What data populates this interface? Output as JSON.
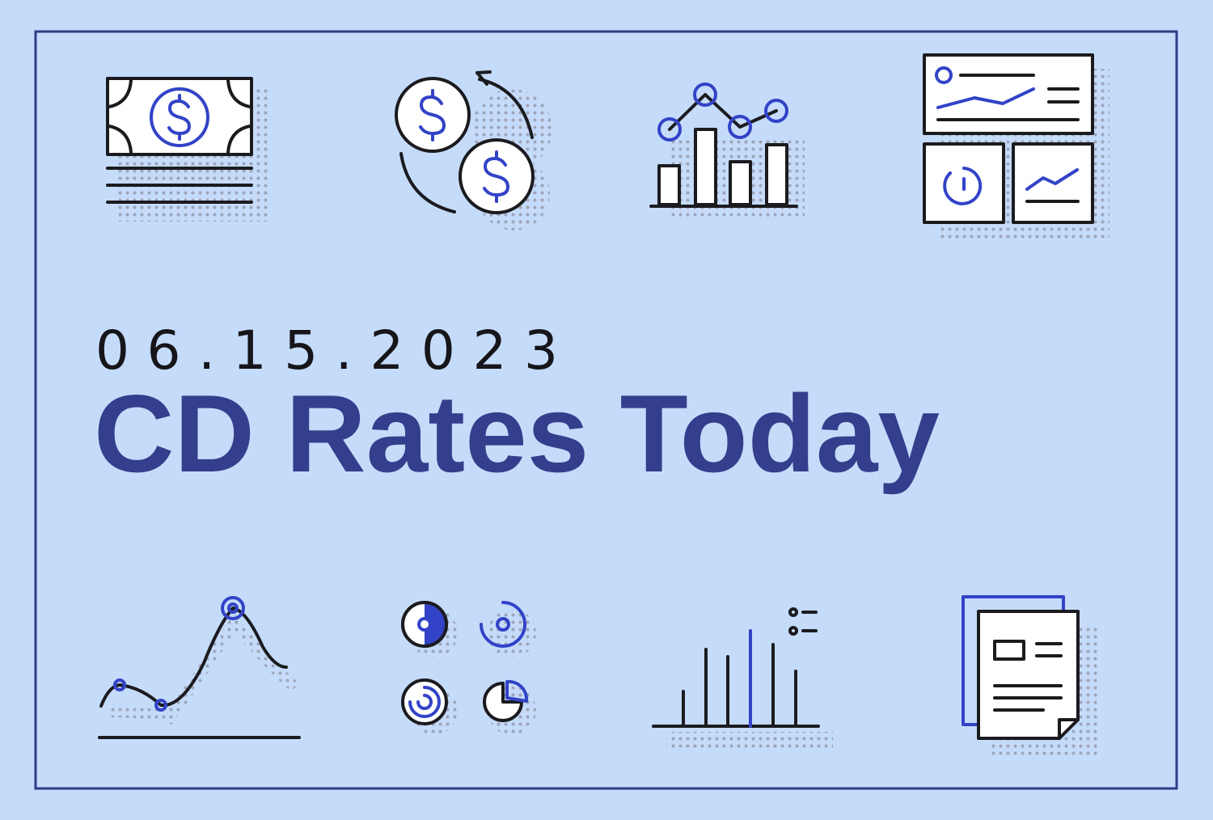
{
  "date": "06.15.2023",
  "title": "CD Rates Today"
}
